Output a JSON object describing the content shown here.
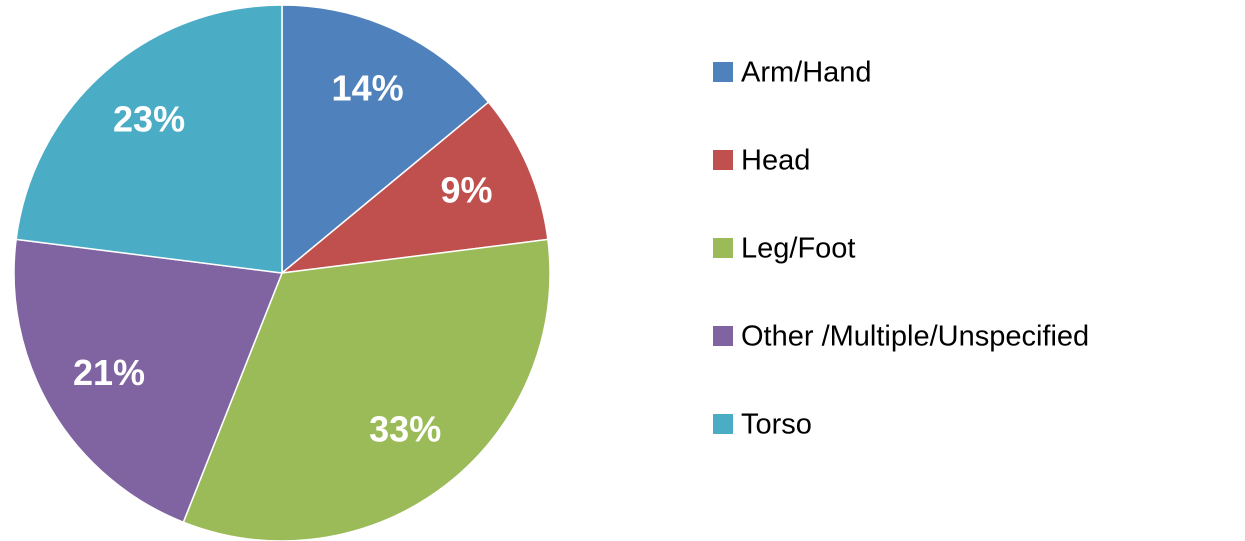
{
  "chart_data": {
    "type": "pie",
    "categories": [
      "Arm/Hand",
      "Head",
      "Leg/Foot",
      "Other /Multiple/Unspecified",
      "Torso"
    ],
    "values": [
      14,
      9,
      33,
      21,
      23
    ],
    "value_labels": [
      "14%",
      "9%",
      "33%",
      "21%",
      "23%"
    ],
    "colors": [
      "#4f81bd",
      "#c0504d",
      "#9bbb59",
      "#8064a2",
      "#4bacc6"
    ],
    "legend": "right"
  }
}
